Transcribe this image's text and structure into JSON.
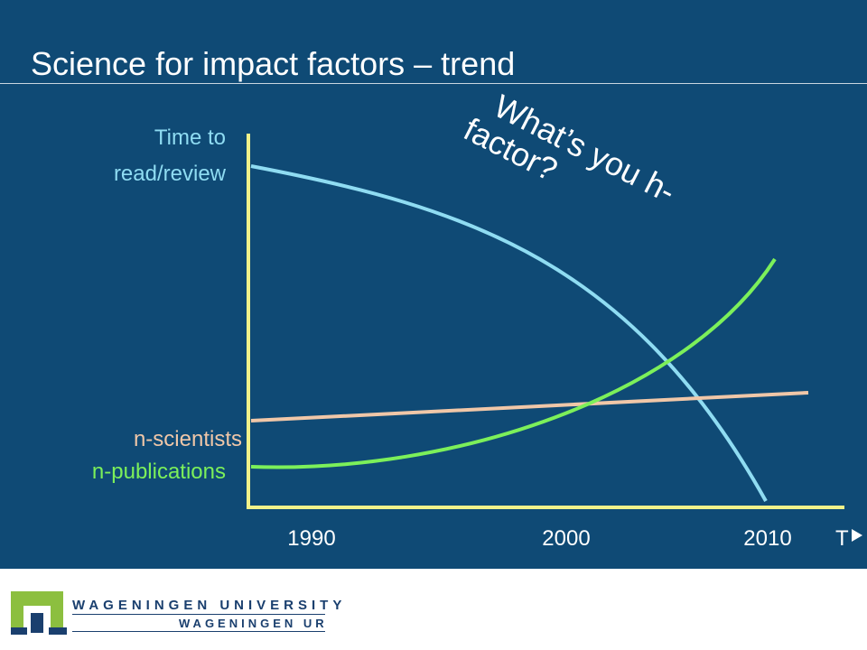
{
  "slide": {
    "title": "Science for impact factors – trend",
    "background": "#0f4a75"
  },
  "chart_data": {
    "type": "line",
    "x_ticks": [
      "1990",
      "2000",
      "2010"
    ],
    "x_axis_end_label": "T",
    "series": [
      {
        "name": "Time to read/review",
        "color": "#8fdcf2"
      },
      {
        "name": "n-scientists",
        "color": "#f0c7a8"
      },
      {
        "name": "n-publications",
        "color": "#7cf05a"
      }
    ],
    "labels": {
      "time_to": "Time to",
      "read_review": "read/review",
      "n_scientists": "n-scientists",
      "n_publications": "n-publications"
    },
    "annotation": {
      "line1": "What’s you h-",
      "line2": "factor?"
    },
    "axis_color": "#f2f28a",
    "grid": false
  },
  "footer": {
    "university": "WAGENINGEN UNIVERSITY",
    "ur": "WAGENINGEN UR",
    "brand_color": "#1a3f6e",
    "logo_green": "#8cbf3f"
  }
}
